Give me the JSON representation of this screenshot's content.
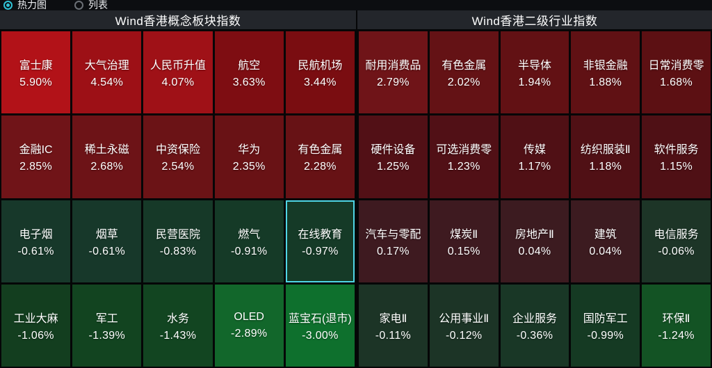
{
  "toolbar": {
    "options": [
      {
        "label": "热力图",
        "selected": true
      },
      {
        "label": "列表",
        "selected": false
      }
    ]
  },
  "accent": {
    "radio_selected": "#2fc3d6",
    "highlight_border": "#4fd6e6",
    "positive_strong": "#b21218",
    "negative_strong": "#0e702d"
  },
  "panels": [
    {
      "title": "Wind香港概念板块指数",
      "cells": [
        {
          "name": "富士康",
          "pct": "5.90%",
          "bg": "#b21218"
        },
        {
          "name": "大气治理",
          "pct": "4.54%",
          "bg": "#9d1016"
        },
        {
          "name": "人民币升值",
          "pct": "4.07%",
          "bg": "#9f1117"
        },
        {
          "name": "航空",
          "pct": "3.63%",
          "bg": "#7e0d12"
        },
        {
          "name": "民航机场",
          "pct": "3.44%",
          "bg": "#7a0d11"
        },
        {
          "name": "金融IC",
          "pct": "2.85%",
          "bg": "#701418"
        },
        {
          "name": "稀土永磁",
          "pct": "2.68%",
          "bg": "#6d1317"
        },
        {
          "name": "中资保险",
          "pct": "2.54%",
          "bg": "#6b1316"
        },
        {
          "name": "华为",
          "pct": "2.35%",
          "bg": "#691215"
        },
        {
          "name": "有色金属",
          "pct": "2.28%",
          "bg": "#671215"
        },
        {
          "name": "电子烟",
          "pct": "-0.61%",
          "bg": "#17382a"
        },
        {
          "name": "烟草",
          "pct": "-0.61%",
          "bg": "#17382a"
        },
        {
          "name": "民营医院",
          "pct": "-0.83%",
          "bg": "#163928"
        },
        {
          "name": "燃气",
          "pct": "-0.91%",
          "bg": "#153a27"
        },
        {
          "name": "在线教育",
          "pct": "-0.97%",
          "bg": "#153a27",
          "highlight": true
        },
        {
          "name": "工业大麻",
          "pct": "-1.06%",
          "bg": "#133e1f"
        },
        {
          "name": "军工",
          "pct": "-1.39%",
          "bg": "#124420"
        },
        {
          "name": "水务",
          "pct": "-1.43%",
          "bg": "#124521"
        },
        {
          "name": "OLED",
          "pct": "-2.89%",
          "bg": "#12672b"
        },
        {
          "name": "蓝宝石(退市)",
          "pct": "-3.00%",
          "bg": "#0e702d"
        }
      ]
    },
    {
      "title": "Wind香港二级行业指数",
      "cells": [
        {
          "name": "耐用消费品",
          "pct": "2.79%",
          "bg": "#6f1418"
        },
        {
          "name": "有色金属",
          "pct": "2.02%",
          "bg": "#641215"
        },
        {
          "name": "半导体",
          "pct": "1.94%",
          "bg": "#621114"
        },
        {
          "name": "非银金融",
          "pct": "1.88%",
          "bg": "#601114"
        },
        {
          "name": "日常消费零",
          "pct": "1.68%",
          "bg": "#5c1013"
        },
        {
          "name": "硬件设备",
          "pct": "1.25%",
          "bg": "#521016"
        },
        {
          "name": "可选消费零",
          "pct": "1.23%",
          "bg": "#511016"
        },
        {
          "name": "传媒",
          "pct": "1.17%",
          "bg": "#501015"
        },
        {
          "name": "纺织服装Ⅱ",
          "pct": "1.18%",
          "bg": "#501015"
        },
        {
          "name": "软件服务",
          "pct": "1.15%",
          "bg": "#4f1015"
        },
        {
          "name": "汽车与零配",
          "pct": "0.17%",
          "bg": "#3e1a20"
        },
        {
          "name": "煤炭Ⅱ",
          "pct": "0.15%",
          "bg": "#3e1a20"
        },
        {
          "name": "房地产Ⅱ",
          "pct": "0.04%",
          "bg": "#3c1b20"
        },
        {
          "name": "建筑",
          "pct": "0.04%",
          "bg": "#3c1b20"
        },
        {
          "name": "电信服务",
          "pct": "-0.06%",
          "bg": "#1d3527"
        },
        {
          "name": "家电Ⅱ",
          "pct": "-0.11%",
          "bg": "#1c3426"
        },
        {
          "name": "公用事业Ⅱ",
          "pct": "-0.12%",
          "bg": "#1c3426"
        },
        {
          "name": "企业服务",
          "pct": "-0.36%",
          "bg": "#193726"
        },
        {
          "name": "国防军工",
          "pct": "-0.99%",
          "bg": "#153a23"
        },
        {
          "name": "环保Ⅱ",
          "pct": "-1.24%",
          "bg": "#135324"
        }
      ]
    }
  ],
  "chart_data": [
    {
      "type": "heatmap",
      "title": "Wind香港概念板块指数",
      "categories": [
        "富士康",
        "大气治理",
        "人民币升值",
        "航空",
        "民航机场",
        "金融IC",
        "稀土永磁",
        "中资保险",
        "华为",
        "有色金属",
        "电子烟",
        "烟草",
        "民营医院",
        "燃气",
        "在线教育",
        "工业大麻",
        "军工",
        "水务",
        "OLED",
        "蓝宝石(退市)"
      ],
      "values": [
        5.9,
        4.54,
        4.07,
        3.63,
        3.44,
        2.85,
        2.68,
        2.54,
        2.35,
        2.28,
        -0.61,
        -0.61,
        -0.83,
        -0.91,
        -0.97,
        -1.06,
        -1.39,
        -1.43,
        -2.89,
        -3.0
      ],
      "unit": "%",
      "color_rule": "red=positive, green=negative; intensity scales with magnitude",
      "selected_cell": "在线教育"
    },
    {
      "type": "heatmap",
      "title": "Wind香港二级行业指数",
      "categories": [
        "耐用消费品",
        "有色金属",
        "半导体",
        "非银金融",
        "日常消费零",
        "硬件设备",
        "可选消费零",
        "传媒",
        "纺织服装Ⅱ",
        "软件服务",
        "汽车与零配",
        "煤炭Ⅱ",
        "房地产Ⅱ",
        "建筑",
        "电信服务",
        "家电Ⅱ",
        "公用事业Ⅱ",
        "企业服务",
        "国防军工",
        "环保Ⅱ"
      ],
      "values": [
        2.79,
        2.02,
        1.94,
        1.88,
        1.68,
        1.25,
        1.23,
        1.17,
        1.18,
        1.15,
        0.17,
        0.15,
        0.04,
        0.04,
        -0.06,
        -0.11,
        -0.12,
        -0.36,
        -0.99,
        -1.24
      ],
      "unit": "%",
      "color_rule": "red=positive, green=negative; intensity scales with magnitude"
    }
  ]
}
